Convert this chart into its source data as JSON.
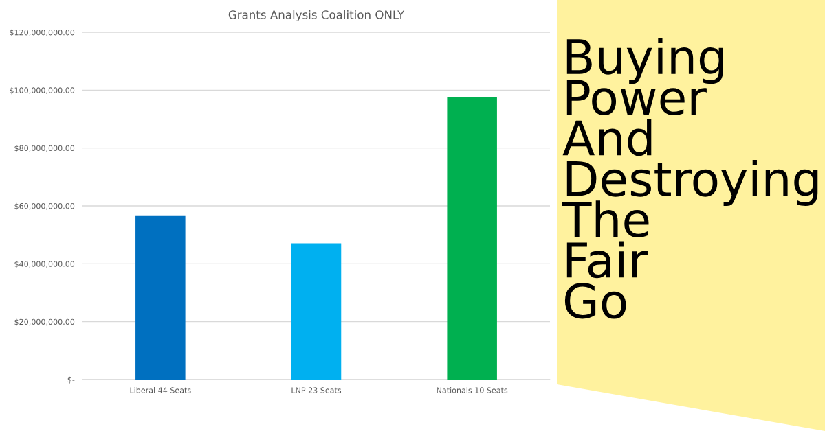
{
  "chart_data": {
    "type": "bar",
    "title": "Grants Analysis Coalition ONLY",
    "subtitle": "Buying\nPower\nAnd\nDestroying\nThe\nFair\nGo",
    "categories": [
      "Liberal 44 Seats",
      "LNP 23 Seats",
      "Nationals 10 Seats"
    ],
    "values": [
      56500000,
      47100000,
      97700000
    ],
    "colors": [
      "#0070c0",
      "#00b0f0",
      "#00b050"
    ],
    "ylim": [
      0,
      120000000
    ],
    "yticks": [
      {
        "value": 0,
        "label": "$-"
      },
      {
        "value": 20000000,
        "label": "$20,000,000.00"
      },
      {
        "value": 40000000,
        "label": "$40,000,000.00"
      },
      {
        "value": 60000000,
        "label": "$60,000,000.00"
      },
      {
        "value": 80000000,
        "label": "$80,000,000.00"
      },
      {
        "value": 100000000,
        "label": "$100,000,000.00"
      },
      {
        "value": 120000000,
        "label": "$120,000,000.00"
      }
    ],
    "grid": "y"
  }
}
